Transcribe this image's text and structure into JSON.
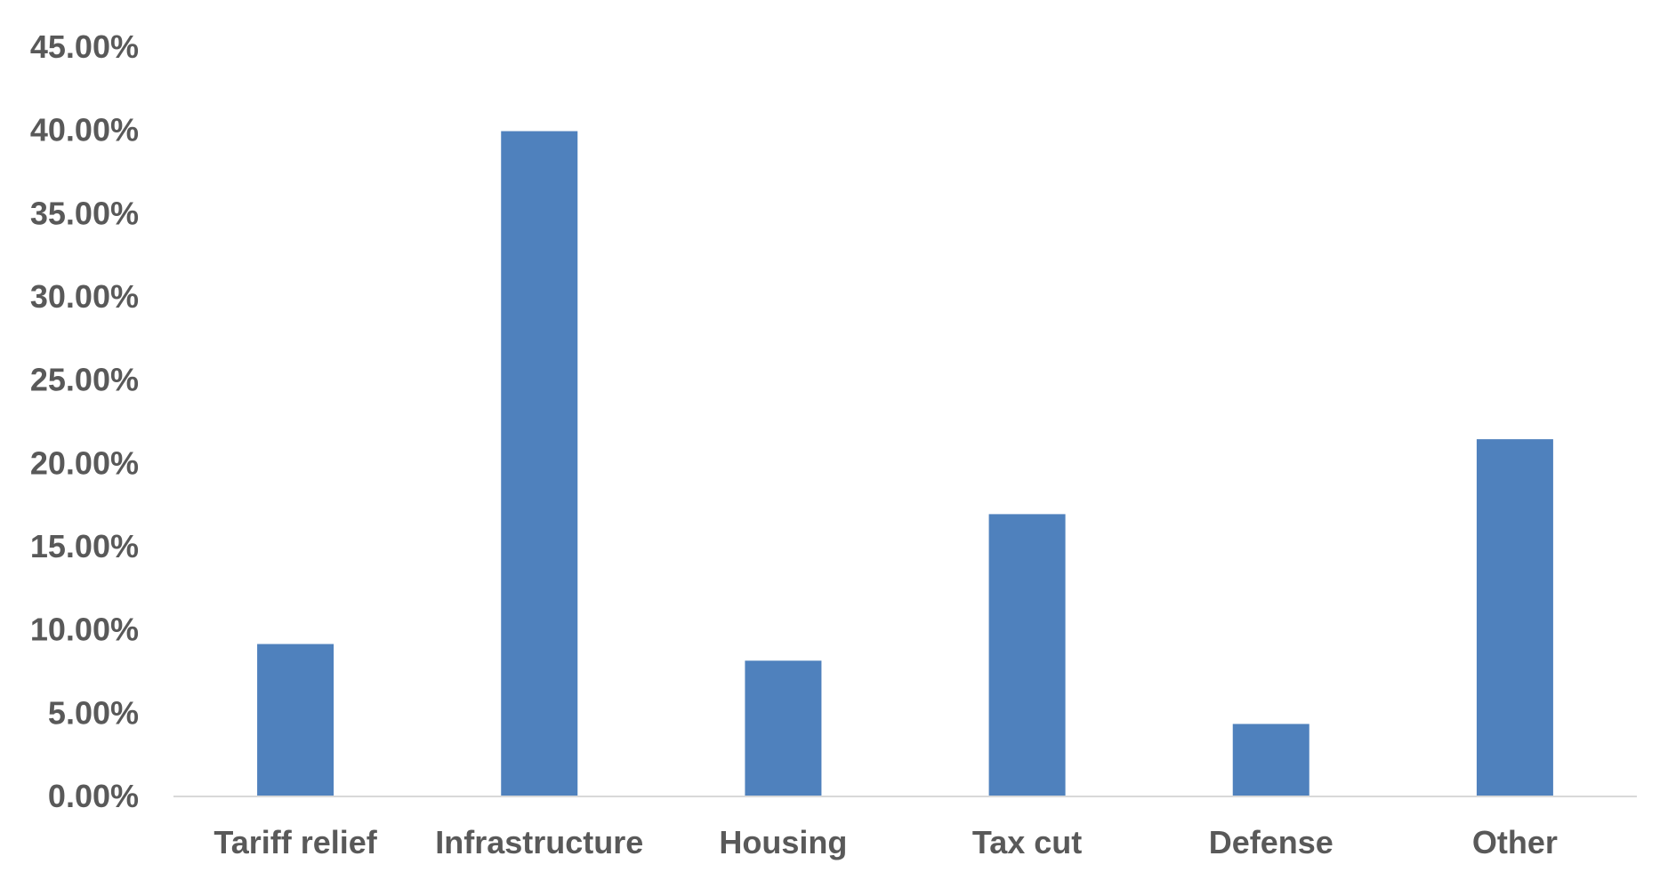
{
  "chart_data": {
    "type": "bar",
    "title": "",
    "xlabel": "",
    "ylabel": "",
    "categories": [
      "Tariff relief",
      "Infrastructure",
      "Housing",
      "Tax cut",
      "Defense",
      "Other"
    ],
    "values": [
      9.1,
      39.9,
      8.1,
      16.9,
      4.3,
      21.4
    ],
    "ylim": [
      0,
      45
    ],
    "y_ticks": [
      0,
      5,
      10,
      15,
      20,
      25,
      30,
      35,
      40,
      45
    ],
    "y_tick_labels": [
      "0.00%",
      "5.00%",
      "10.00%",
      "15.00%",
      "20.00%",
      "25.00%",
      "30.00%",
      "35.00%",
      "40.00%",
      "45.00%"
    ],
    "grid": false,
    "legend": "none",
    "bar_color": "#4F81BD",
    "axis_color": "#D9D9D9",
    "label_color": "#595959"
  }
}
